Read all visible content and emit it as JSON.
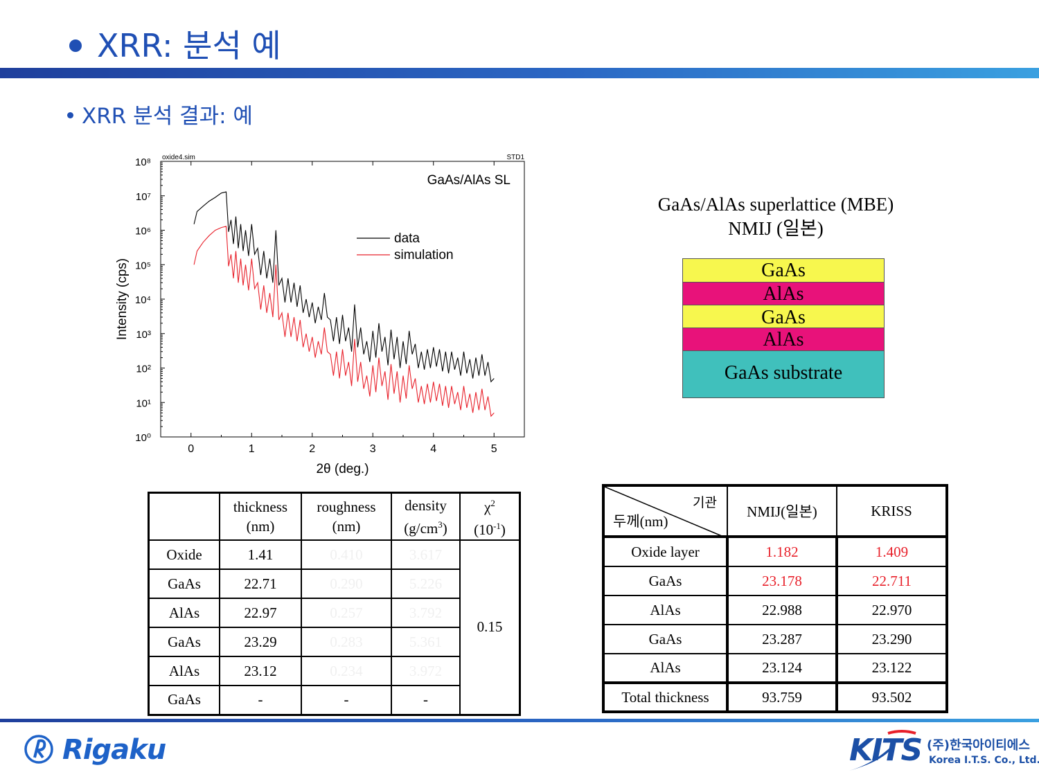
{
  "header": {
    "title": "XRR: 분석 예",
    "subtitle": "XRR 분석 결과: 예"
  },
  "colors": {
    "accent": "#1f4fb4",
    "data_line": "#000000",
    "simulation_line": "#e8202a",
    "gaas_layer": "#f7f74e",
    "alas_layer": "#e8127a",
    "substrate_layer": "#40c0bc",
    "highlight_value": "#e8202a"
  },
  "chart_data": {
    "type": "line",
    "file_label": "oxide4.sim",
    "std_label": "STD1",
    "annotation": "GaAs/AlAs SL",
    "xlabel": "2θ (deg.)",
    "ylabel": "Intensity (cps)",
    "xlim": [
      -0.5,
      5.5
    ],
    "ylim": [
      1,
      100000000
    ],
    "yscale": "log",
    "x_ticks": [
      "0",
      "1",
      "2",
      "3",
      "4",
      "5"
    ],
    "y_ticks": [
      "10⁰",
      "10¹",
      "10²",
      "10³",
      "10⁴",
      "10⁵",
      "10⁶",
      "10⁷",
      "10⁸"
    ],
    "legend_position": "upper-right",
    "series": [
      {
        "name": "data",
        "color": "#000000",
        "x": [
          0.05,
          0.1,
          0.2,
          0.3,
          0.4,
          0.5,
          0.58,
          0.62,
          0.66,
          0.7,
          0.74,
          0.78,
          0.82,
          0.86,
          0.9,
          0.95,
          1.0,
          1.05,
          1.1,
          1.15,
          1.2,
          1.25,
          1.3,
          1.35,
          1.4,
          1.45,
          1.5,
          1.55,
          1.6,
          1.65,
          1.7,
          1.75,
          1.8,
          1.85,
          1.9,
          1.95,
          2.0,
          2.05,
          2.1,
          2.15,
          2.2,
          2.25,
          2.3,
          2.35,
          2.4,
          2.45,
          2.5,
          2.55,
          2.6,
          2.65,
          2.7,
          2.75,
          2.8,
          2.85,
          2.9,
          2.95,
          3.0,
          3.05,
          3.1,
          3.15,
          3.2,
          3.25,
          3.3,
          3.35,
          3.4,
          3.45,
          3.5,
          3.55,
          3.6,
          3.65,
          3.7,
          3.75,
          3.8,
          3.85,
          3.9,
          3.95,
          4.0,
          4.05,
          4.1,
          4.15,
          4.2,
          4.25,
          4.3,
          4.35,
          4.4,
          4.45,
          4.5,
          4.55,
          4.6,
          4.65,
          4.7,
          4.75,
          4.8,
          4.85,
          4.9,
          4.95,
          5.0
        ],
        "y": [
          1500000,
          3500000,
          5000000,
          7000000,
          9000000,
          12000000,
          13000000,
          900000,
          2000000,
          400000,
          2500000,
          300000,
          1500000,
          250000,
          1000000,
          180000,
          1500000,
          200000,
          300000,
          50000,
          250000,
          40000,
          150000,
          30000,
          1000000,
          25000,
          40000,
          8000,
          40000,
          8000,
          30000,
          6000,
          25000,
          4000,
          10000,
          3000,
          8000,
          2000,
          6000,
          2500,
          15000,
          3000,
          2500,
          600,
          3000,
          500,
          3500,
          600,
          1500,
          300,
          7000,
          400,
          1500,
          250,
          600,
          150,
          1200,
          200,
          2000,
          300,
          800,
          120,
          1300,
          180,
          800,
          100,
          600,
          130,
          1200,
          250,
          500,
          100,
          300,
          90,
          350,
          100,
          400,
          110,
          350,
          80,
          300,
          70,
          300,
          90,
          200,
          60,
          300,
          70,
          180,
          50,
          200,
          60,
          250,
          60,
          150,
          40,
          50
        ]
      },
      {
        "name": "simulation",
        "color": "#e8202a",
        "x": [
          0.05,
          0.1,
          0.2,
          0.3,
          0.4,
          0.5,
          0.58,
          0.62,
          0.66,
          0.7,
          0.74,
          0.78,
          0.82,
          0.86,
          0.9,
          0.95,
          1.0,
          1.05,
          1.1,
          1.15,
          1.2,
          1.25,
          1.3,
          1.35,
          1.4,
          1.45,
          1.5,
          1.55,
          1.6,
          1.65,
          1.7,
          1.75,
          1.8,
          1.85,
          1.9,
          1.95,
          2.0,
          2.05,
          2.1,
          2.15,
          2.2,
          2.25,
          2.3,
          2.35,
          2.4,
          2.45,
          2.5,
          2.55,
          2.6,
          2.65,
          2.7,
          2.75,
          2.8,
          2.85,
          2.9,
          2.95,
          3.0,
          3.05,
          3.1,
          3.15,
          3.2,
          3.25,
          3.3,
          3.35,
          3.4,
          3.45,
          3.5,
          3.55,
          3.6,
          3.65,
          3.7,
          3.75,
          3.8,
          3.85,
          3.9,
          3.95,
          4.0,
          4.05,
          4.1,
          4.15,
          4.2,
          4.25,
          4.3,
          4.35,
          4.4,
          4.45,
          4.5,
          4.55,
          4.6,
          4.65,
          4.7,
          4.75,
          4.8,
          4.85,
          4.9,
          4.95,
          5.0
        ],
        "y": [
          100000,
          250000,
          450000,
          700000,
          1000000,
          1200000,
          1300000,
          90000,
          200000,
          40000,
          250000,
          30000,
          150000,
          25000,
          100000,
          18000,
          150000,
          20000,
          30000,
          5000,
          25000,
          4000,
          15000,
          3000,
          100000,
          2500,
          4000,
          800,
          4000,
          800,
          3000,
          600,
          2500,
          400,
          1000,
          300,
          800,
          200,
          600,
          250,
          1500,
          300,
          250,
          60,
          300,
          50,
          350,
          60,
          150,
          30,
          700,
          40,
          150,
          25,
          60,
          15,
          120,
          20,
          200,
          30,
          80,
          12,
          130,
          18,
          80,
          10,
          60,
          13,
          120,
          25,
          50,
          10,
          30,
          9,
          35,
          10,
          40,
          11,
          35,
          8,
          30,
          7,
          30,
          9,
          20,
          6,
          30,
          7,
          18,
          5,
          20,
          6,
          25,
          6,
          15,
          4,
          5
        ]
      }
    ]
  },
  "sample": {
    "title_line1": "GaAs/AlAs superlattice (MBE)",
    "title_line2": "NMIJ (일본)",
    "layers": [
      "GaAs",
      "AlAs",
      "GaAs",
      "AlAs",
      "GaAs substrate"
    ]
  },
  "fit_table": {
    "headers": {
      "thickness": [
        "thickness",
        "(nm)"
      ],
      "roughness": [
        "roughness",
        "(nm)"
      ],
      "density": [
        "density",
        "(g/cm",
        "3",
        ")"
      ],
      "chi": [
        "χ",
        "2",
        "(10",
        "-1",
        ")"
      ]
    },
    "rows": [
      {
        "layer": "Oxide",
        "thickness": "1.41",
        "roughness": "0.410",
        "density": "3.617"
      },
      {
        "layer": "GaAs",
        "thickness": "22.71",
        "roughness": "0.290",
        "density": "5.226"
      },
      {
        "layer": "AlAs",
        "thickness": "22.97",
        "roughness": "0.257",
        "density": "3.792"
      },
      {
        "layer": "GaAs",
        "thickness": "23.29",
        "roughness": "0.283",
        "density": "5.361"
      },
      {
        "layer": "AlAs",
        "thickness": "23.12",
        "roughness": "0.234",
        "density": "3.972"
      },
      {
        "layer": "GaAs",
        "thickness": "-",
        "roughness": "-",
        "density": "-"
      }
    ],
    "chi_value": "0.15"
  },
  "compare_table": {
    "corner_top": "기관",
    "corner_bottom": "두께(nm)",
    "col1": "NMIJ(일본)",
    "col2": "KRISS",
    "rows": [
      {
        "label": "Oxide layer",
        "nmij": "1.182",
        "kriss": "1.409"
      },
      {
        "label": "GaAs",
        "nmij": "23.178",
        "kriss": "22.711"
      },
      {
        "label": "AlAs",
        "nmij": "22.988",
        "kriss": "22.970"
      },
      {
        "label": "GaAs",
        "nmij": "23.287",
        "kriss": "23.290"
      },
      {
        "label": "AlAs",
        "nmij": "23.124",
        "kriss": "23.122"
      },
      {
        "label": "Total thickness",
        "nmij": "93.759",
        "kriss": "93.502"
      }
    ]
  },
  "footer": {
    "left_logo": "Rigaku",
    "right_logo": "KITS",
    "right_logo_korean": "(주)한국아이티에스",
    "right_logo_english": "Korea I.T.S. Co., Ltd."
  }
}
